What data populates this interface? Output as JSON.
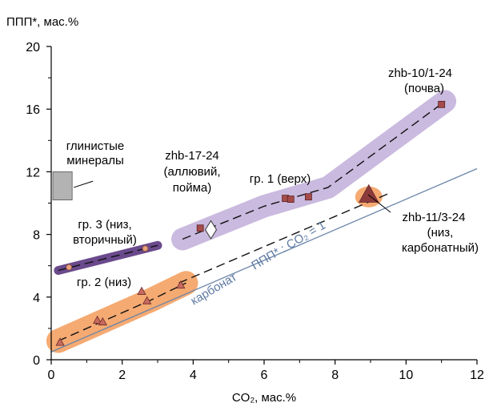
{
  "chart_data": {
    "type": "scatter",
    "ylabel": "ППП*, мас.%",
    "xlabel": "CO₂, мас.%",
    "xlim": [
      0,
      12
    ],
    "ylim": [
      0,
      20
    ],
    "x_ticks": [
      0,
      2,
      4,
      6,
      8,
      10,
      12
    ],
    "y_ticks": [
      0,
      4,
      8,
      12,
      16,
      20
    ],
    "x_tick_labels": [
      "0",
      "2",
      "4",
      "6",
      "8",
      "10",
      "12"
    ],
    "y_tick_labels": [
      "0",
      "4",
      "8",
      "12",
      "16",
      "20"
    ],
    "grid": false,
    "reference_line": {
      "label_text": "карбонат",
      "ratio_text": "ППП* : CO₂ = 1",
      "points": [
        [
          0,
          0.5
        ],
        [
          12,
          12.2
        ]
      ],
      "color": "#6b85a8"
    },
    "series": [
      {
        "name": "гр. 1 (верх)",
        "marker": "square",
        "color": "#a54b4b",
        "halo_color": "#c4b2dc",
        "points": [
          [
            4.2,
            8.4
          ],
          [
            6.6,
            10.3
          ],
          [
            6.75,
            10.25
          ],
          [
            7.25,
            10.4
          ],
          [
            11.0,
            16.3
          ]
        ],
        "trend": [
          [
            3.7,
            7.7
          ],
          [
            6.0,
            9.8
          ],
          [
            7.8,
            11.0
          ],
          [
            11.1,
            16.5
          ]
        ]
      },
      {
        "name": "гр. 2 (низ)",
        "marker": "triangle",
        "color": "#c86a5e",
        "halo_color": "#f4a56a",
        "points": [
          [
            0.25,
            1.1
          ],
          [
            1.3,
            2.5
          ],
          [
            1.45,
            2.4
          ],
          [
            2.55,
            4.35
          ],
          [
            2.7,
            3.75
          ],
          [
            3.65,
            4.75
          ]
        ],
        "trend": [
          [
            0.2,
            1.2
          ],
          [
            1.4,
            2.4
          ],
          [
            2.8,
            3.8
          ],
          [
            3.8,
            4.9
          ]
        ]
      },
      {
        "name": "гр. 3 (низ, вторичный)",
        "marker": "circle",
        "color": "#e8a27c",
        "halo_color": "#6a4a8c",
        "points": [
          [
            0.5,
            5.9
          ],
          [
            2.65,
            7.1
          ]
        ],
        "trend": [
          [
            0.2,
            5.7
          ],
          [
            3.0,
            7.3
          ]
        ]
      },
      {
        "name": "zhb-10/1-24 (почва)",
        "marker": "square",
        "color": "#a54b4b",
        "points": [
          [
            11.0,
            16.3
          ]
        ]
      },
      {
        "name": "zhb-17-24 (аллювий, пойма)",
        "marker": "diamond",
        "color": "#ffffff",
        "points": [
          [
            4.5,
            8.3
          ]
        ]
      },
      {
        "name": "zhb-11/3-24 (низ, карбонатный)",
        "marker": "triangle",
        "color": "#8c3a3a",
        "points": [
          [
            8.95,
            10.5
          ]
        ],
        "trend": [
          [
            3.6,
            4.9
          ],
          [
            9.5,
            10.6
          ]
        ]
      }
    ],
    "clay_box": {
      "label_line1": "глинистые",
      "label_line2": "минералы",
      "x": [
        0,
        0.5
      ],
      "y": [
        10.2,
        12.0
      ],
      "color": "#b3b3b3"
    },
    "annotations": [
      {
        "id": "gr1",
        "lines": [
          "гр. 1 (верх)"
        ]
      },
      {
        "id": "gr2",
        "lines": [
          "гр. 2 (низ)"
        ]
      },
      {
        "id": "gr3",
        "lines": [
          "гр. 3 (низ,",
          "вторичный)"
        ]
      },
      {
        "id": "s10",
        "lines": [
          "zhb-10/1-24",
          "(почва)"
        ]
      },
      {
        "id": "s17",
        "lines": [
          "zhb-17-24",
          "(аллювий,",
          "пойма)"
        ]
      },
      {
        "id": "s11",
        "lines": [
          "zhb-11/3-24",
          "(низ,",
          "карбонатный)"
        ]
      }
    ]
  }
}
